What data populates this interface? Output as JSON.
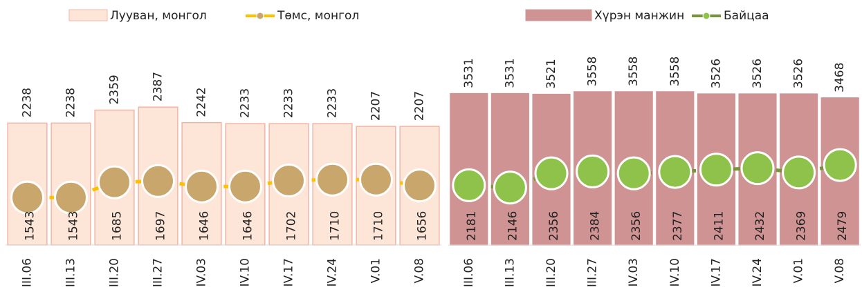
{
  "chart_data": [
    {
      "type": "combo",
      "categories": [
        "III.06",
        "III.13",
        "III.20",
        "III.27",
        "IV.03",
        "IV.10",
        "IV.17",
        "IV.24",
        "V.01",
        "V.08"
      ],
      "ylim": [
        1100,
        3000
      ],
      "series": [
        {
          "name": "Лууван, монгол",
          "type": "bar",
          "color": "#fde6d8",
          "stroke": "#f2b5a5",
          "values": [
            2238,
            2238,
            2359,
            2387,
            2242,
            2233,
            2233,
            2233,
            2207,
            2207
          ]
        },
        {
          "name": "Төмс, монгол",
          "type": "line",
          "color": "#ffc000",
          "marker": "#c9a66b",
          "values": [
            1543,
            1543,
            1685,
            1697,
            1646,
            1646,
            1702,
            1710,
            1710,
            1656
          ]
        }
      ]
    },
    {
      "type": "combo",
      "categories": [
        "III.06",
        "III.13",
        "III.20",
        "III.27",
        "IV.03",
        "IV.10",
        "IV.17",
        "IV.24",
        "V.01",
        "V.08"
      ],
      "ylim": [
        1300,
        4300
      ],
      "series": [
        {
          "name": "Хүрэн манжин",
          "type": "bar",
          "color": "#d09393",
          "stroke": "#d09393",
          "values": [
            3531,
            3531,
            3521,
            3558,
            3558,
            3558,
            3526,
            3526,
            3526,
            3468
          ]
        },
        {
          "name": "Байцаа",
          "type": "line",
          "color": "#77933c",
          "marker": "#8fc24a",
          "values": [
            2181,
            2146,
            2356,
            2384,
            2356,
            2377,
            2411,
            2432,
            2369,
            2479
          ]
        }
      ]
    }
  ]
}
